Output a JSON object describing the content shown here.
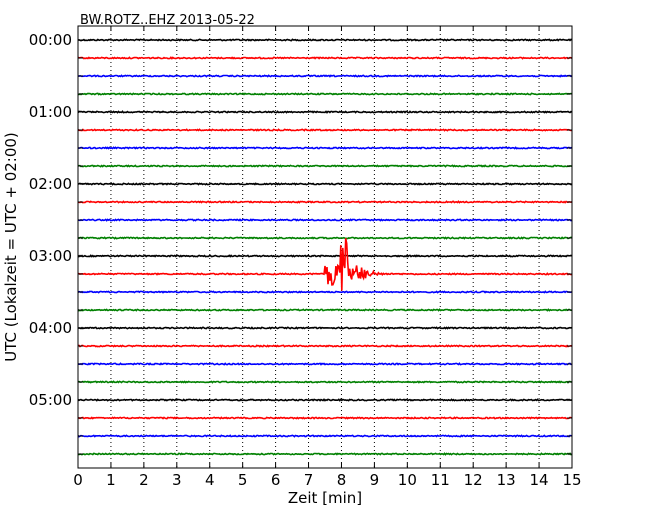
{
  "chart_data": {
    "type": "line",
    "title": "BW.ROTZ..EHZ 2013-05-22",
    "xlabel": "Zeit  [min]",
    "ylabel": "UTC (Lokalzeit = UTC + 02:00)",
    "xlim": [
      0,
      15
    ],
    "x_ticks": [
      "0",
      "1",
      "2",
      "3",
      "4",
      "5",
      "6",
      "7",
      "8",
      "9",
      "10",
      "11",
      "12",
      "13",
      "14",
      "15"
    ],
    "y_tick_labels": [
      "00:00",
      "01:00",
      "02:00",
      "03:00",
      "04:00",
      "05:00"
    ],
    "grid": "vertical dotted",
    "trace_colors": [
      "#000000",
      "#ff0000",
      "#0000ff",
      "#008000"
    ],
    "traces": [
      {
        "start": "00:00",
        "color": "#000000"
      },
      {
        "start": "00:15",
        "color": "#ff0000"
      },
      {
        "start": "00:30",
        "color": "#0000ff"
      },
      {
        "start": "00:45",
        "color": "#008000"
      },
      {
        "start": "01:00",
        "color": "#000000"
      },
      {
        "start": "01:15",
        "color": "#ff0000"
      },
      {
        "start": "01:30",
        "color": "#0000ff"
      },
      {
        "start": "01:45",
        "color": "#008000"
      },
      {
        "start": "02:00",
        "color": "#000000"
      },
      {
        "start": "02:15",
        "color": "#ff0000"
      },
      {
        "start": "02:30",
        "color": "#0000ff"
      },
      {
        "start": "02:45",
        "color": "#008000"
      },
      {
        "start": "03:00",
        "color": "#000000"
      },
      {
        "start": "03:15",
        "color": "#ff0000",
        "event": {
          "onset_min": 7.5,
          "peak_min": 8.0,
          "end_min": 9.5
        }
      },
      {
        "start": "03:30",
        "color": "#0000ff"
      },
      {
        "start": "03:45",
        "color": "#008000"
      },
      {
        "start": "04:00",
        "color": "#000000"
      },
      {
        "start": "04:15",
        "color": "#ff0000"
      },
      {
        "start": "04:30",
        "color": "#0000ff"
      },
      {
        "start": "04:45",
        "color": "#008000"
      },
      {
        "start": "05:00",
        "color": "#000000"
      },
      {
        "start": "05:15",
        "color": "#ff0000"
      },
      {
        "start": "05:30",
        "color": "#0000ff"
      },
      {
        "start": "05:45",
        "color": "#008000"
      }
    ]
  }
}
